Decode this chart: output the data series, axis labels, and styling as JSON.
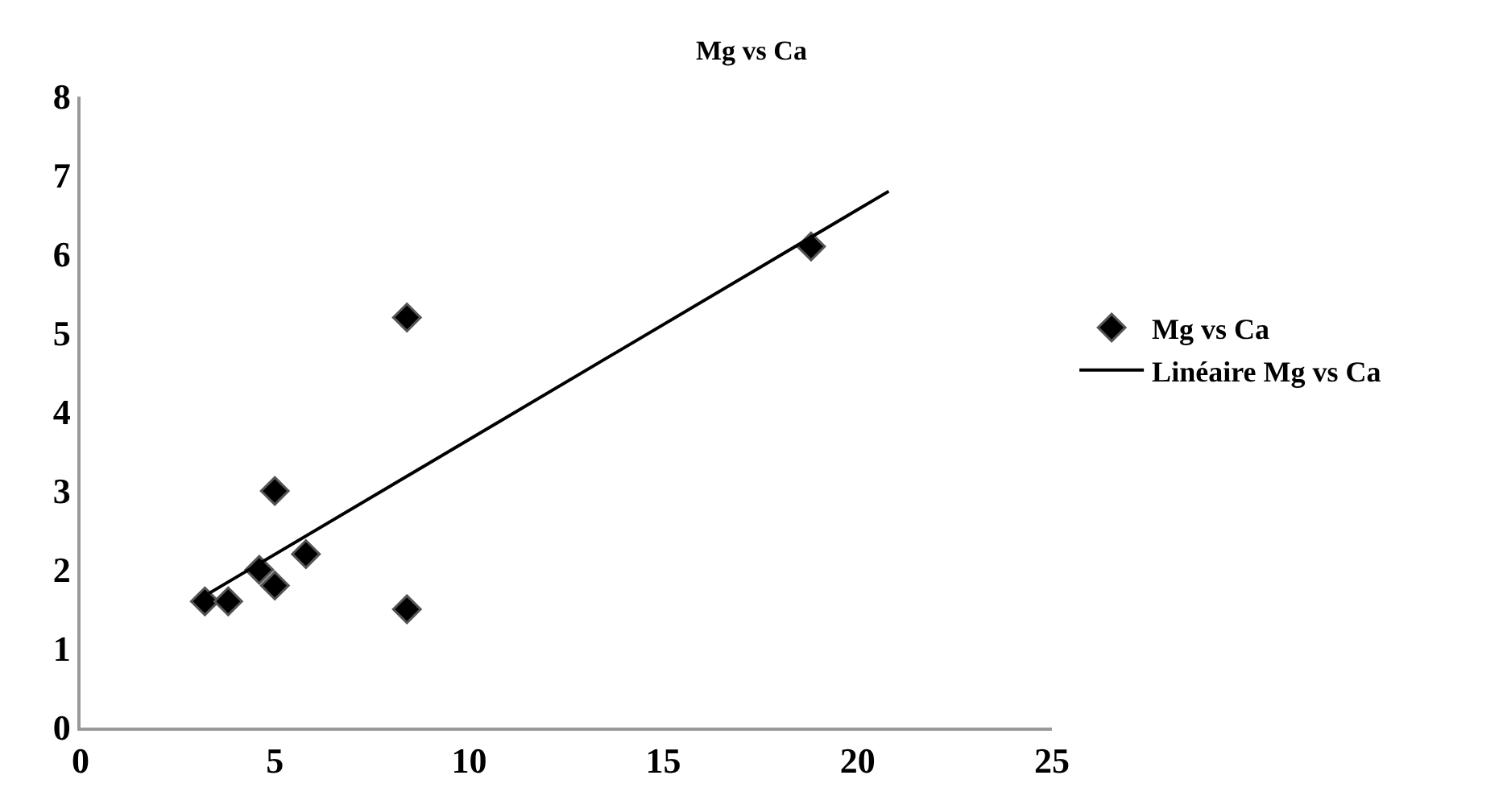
{
  "chart_data": {
    "type": "scatter",
    "title": "Mg vs Ca",
    "legend": "right",
    "grid": false,
    "xlim": [
      0,
      25
    ],
    "xticks": [
      0,
      5,
      10,
      15,
      20,
      25
    ],
    "ylim": [
      0,
      8
    ],
    "yticks": [
      0,
      1,
      2,
      3,
      4,
      5,
      6,
      7,
      8
    ],
    "series": [
      {
        "name": "Mg vs Ca",
        "marker": "diamond",
        "color": "#000000",
        "x": [
          3.2,
          3.8,
          4.6,
          5.0,
          5.0,
          5.8,
          8.4,
          8.4,
          18.8
        ],
        "values": [
          1.6,
          1.6,
          2.0,
          1.8,
          3.0,
          2.2,
          5.2,
          1.5,
          6.1
        ]
      },
      {
        "name": "Linéaire Mg vs Ca",
        "type": "line",
        "marker": "none",
        "color": "#000000",
        "x": [
          3.3,
          20.8
        ],
        "values": [
          1.7,
          6.8
        ]
      }
    ]
  }
}
